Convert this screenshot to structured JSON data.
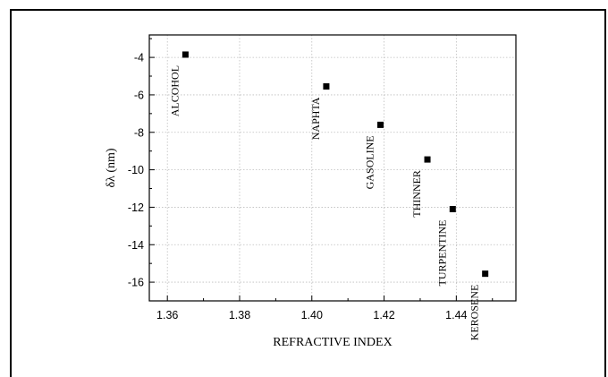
{
  "chart_data": {
    "type": "scatter",
    "title": "",
    "xlabel": "REFRACTIVE INDEX",
    "ylabel": "δλ (nm)",
    "xlim": [
      1.355,
      1.4565
    ],
    "ylim": [
      -17.0,
      -2.8
    ],
    "xticks": [
      1.36,
      1.38,
      1.4,
      1.42,
      1.44
    ],
    "xtick_labels": [
      "1.36",
      "1.38",
      "1.40",
      "1.42",
      "1.44"
    ],
    "yticks": [
      -4,
      -6,
      -8,
      -10,
      -12,
      -14,
      -16
    ],
    "ytick_labels": [
      "-4",
      "-6",
      "-8",
      "-10",
      "-12",
      "-14",
      "-16"
    ],
    "grid": true,
    "marker": "square",
    "marker_color": "#000000",
    "points": [
      {
        "label": "ALCOHOL",
        "x": 1.365,
        "y": -3.85
      },
      {
        "label": "NAPHTA",
        "x": 1.404,
        "y": -5.55
      },
      {
        "label": "GASOLINE",
        "x": 1.419,
        "y": -7.6
      },
      {
        "label": "THINNER",
        "x": 1.432,
        "y": -9.45
      },
      {
        "label": "TURPENTINE",
        "x": 1.439,
        "y": -12.1
      },
      {
        "label": "KEROSENE",
        "x": 1.448,
        "y": -15.55
      }
    ]
  }
}
